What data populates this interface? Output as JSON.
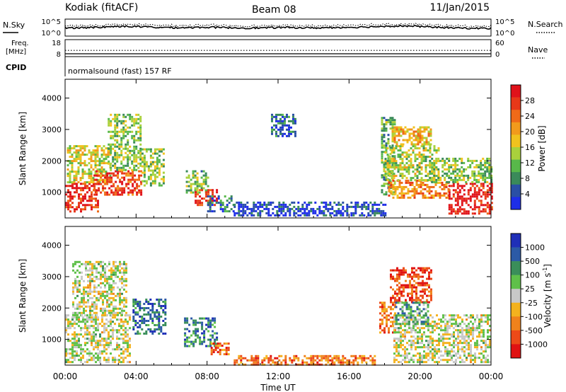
{
  "header": {
    "station": "Kodiak (fitACF)",
    "beam": "Beam 08",
    "date": "11/Jan/2015"
  },
  "noise_panel": {
    "left_label": "N.Sky",
    "right_label": "N.Search",
    "ticks_left": [
      "10^5",
      "10^0"
    ],
    "ticks_right": [
      "10^5",
      "10^0"
    ]
  },
  "freq_panel": {
    "label_line1": "Freq.",
    "label_line2": "[MHz]",
    "ticks_left": [
      "18",
      "8"
    ],
    "right_label": "Nave",
    "ticks_right": [
      "60",
      "0"
    ]
  },
  "cpid": {
    "label": "CPID",
    "mode": "normalsound (fast) 157 RF"
  },
  "time_axis": {
    "label": "Time UT",
    "ticks": [
      "00:00",
      "04:00",
      "08:00",
      "12:00",
      "16:00",
      "20:00",
      "00:00"
    ]
  },
  "chart_data": [
    {
      "type": "heatmap",
      "title": "Power",
      "xlabel": "Time UT",
      "ylabel": "Slant Range [km]",
      "xlim": [
        0,
        24
      ],
      "ylim": [
        180,
        4600
      ],
      "yticks": [
        "1000",
        "2000",
        "3000",
        "4000"
      ],
      "colorbar_label": "Power [dB]",
      "colorbar_ticks": [
        "4",
        "8",
        "12",
        "16",
        "20",
        "24",
        "28"
      ],
      "colorbar_colors": [
        "#1e2ee8",
        "#2a4fa5",
        "#3a8a5a",
        "#58b84a",
        "#a9d13c",
        "#f1c21e",
        "#f29a1c",
        "#ef6a18",
        "#e83818",
        "#e0121a"
      ],
      "regions": [
        {
          "t0": 0.0,
          "t1": 1.9,
          "r0": 380,
          "r1": 1300,
          "level": 0.9
        },
        {
          "t0": 0.1,
          "t1": 2.5,
          "r0": 1300,
          "r1": 2500,
          "level": 0.5
        },
        {
          "t0": 1.6,
          "t1": 4.3,
          "r0": 900,
          "r1": 1700,
          "level": 0.85
        },
        {
          "t0": 2.4,
          "t1": 4.3,
          "r0": 1700,
          "r1": 3500,
          "level": 0.4
        },
        {
          "t0": 4.3,
          "t1": 5.6,
          "r0": 1200,
          "r1": 2400,
          "level": 0.4
        },
        {
          "t0": 6.8,
          "t1": 8.0,
          "r0": 1000,
          "r1": 1700,
          "level": 0.35
        },
        {
          "t0": 7.3,
          "t1": 8.6,
          "r0": 600,
          "r1": 1100,
          "level": 0.85
        },
        {
          "t0": 8.0,
          "t1": 9.5,
          "r0": 400,
          "r1": 900,
          "level": 0.2
        },
        {
          "t0": 9.5,
          "t1": 18.0,
          "r0": 250,
          "r1": 700,
          "level": 0.1
        },
        {
          "t0": 11.6,
          "t1": 13.0,
          "r0": 2800,
          "r1": 3500,
          "level": 0.15
        },
        {
          "t0": 17.8,
          "t1": 18.6,
          "r0": 900,
          "r1": 3400,
          "level": 0.35
        },
        {
          "t0": 18.2,
          "t1": 21.6,
          "r0": 800,
          "r1": 1400,
          "level": 0.7
        },
        {
          "t0": 18.0,
          "t1": 21.0,
          "r0": 1400,
          "r1": 2500,
          "level": 0.45
        },
        {
          "t0": 18.4,
          "t1": 20.6,
          "r0": 2500,
          "r1": 3100,
          "level": 0.6
        },
        {
          "t0": 21.6,
          "t1": 24.0,
          "r0": 300,
          "r1": 1300,
          "level": 0.95
        },
        {
          "t0": 20.5,
          "t1": 24.0,
          "r0": 1300,
          "r1": 2100,
          "level": 0.4
        }
      ]
    },
    {
      "type": "heatmap",
      "title": "Velocity",
      "xlabel": "Time UT",
      "ylabel": "Slant Range [km]",
      "xlim": [
        0,
        24
      ],
      "ylim": [
        180,
        4600
      ],
      "yticks": [
        "1000",
        "2000",
        "3000",
        "4000"
      ],
      "colorbar_label": "Velocity [m s^-1]",
      "colorbar_ticks": [
        "1000",
        "500",
        "100",
        "25",
        "-25",
        "-100",
        "-500",
        "-1000"
      ],
      "colorbar_colors": [
        "#1f2fb8",
        "#2c5aa6",
        "#3a8e5a",
        "#5fc04a",
        "#c8c8c8",
        "#f4b21e",
        "#f0821c",
        "#ec4a18",
        "#e01212"
      ],
      "regions": [
        {
          "t0": 0.0,
          "t1": 3.6,
          "r0": 300,
          "r1": 1800,
          "level": 0.5
        },
        {
          "t0": 0.4,
          "t1": 3.5,
          "r0": 1800,
          "r1": 3500,
          "level": 0.5
        },
        {
          "t0": 3.8,
          "t1": 5.7,
          "r0": 1200,
          "r1": 2300,
          "level": 0.2
        },
        {
          "t0": 6.7,
          "t1": 8.6,
          "r0": 800,
          "r1": 1700,
          "level": 0.25
        },
        {
          "t0": 8.2,
          "t1": 9.2,
          "r0": 500,
          "r1": 900,
          "level": 0.8
        },
        {
          "t0": 9.5,
          "t1": 17.5,
          "r0": 200,
          "r1": 500,
          "level": 0.75
        },
        {
          "t0": 17.7,
          "t1": 18.6,
          "r0": 1200,
          "r1": 2200,
          "level": 0.75
        },
        {
          "t0": 18.3,
          "t1": 20.6,
          "r0": 2200,
          "r1": 3300,
          "level": 0.85
        },
        {
          "t0": 18.5,
          "t1": 24.0,
          "r0": 300,
          "r1": 1800,
          "level": 0.5
        },
        {
          "t0": 18.6,
          "t1": 20.4,
          "r0": 1500,
          "r1": 2200,
          "level": 0.3
        }
      ]
    },
    {
      "type": "line",
      "title": "N.Sky",
      "xlim": [
        0,
        24
      ],
      "ylim": [
        0,
        5
      ],
      "x": [
        0,
        1,
        2,
        3,
        4,
        5,
        6,
        7,
        8,
        9,
        10,
        11,
        12,
        13,
        14,
        15,
        16,
        17,
        18,
        19,
        20,
        21,
        22,
        23,
        24
      ],
      "values": [
        2.4,
        2.5,
        2.6,
        2.9,
        2.8,
        2.6,
        2.5,
        2.5,
        2.6,
        2.5,
        2.4,
        2.4,
        2.5,
        2.5,
        2.4,
        2.5,
        2.6,
        2.7,
        2.9,
        3.0,
        2.8,
        2.6,
        2.4,
        2.3,
        2.3
      ]
    },
    {
      "type": "line",
      "title": "Nave",
      "xlim": [
        0,
        24
      ],
      "ylim": [
        0,
        60
      ],
      "x": [
        0,
        2,
        4,
        6,
        8,
        10,
        12,
        14,
        16,
        18,
        20,
        22,
        24
      ],
      "values": [
        22,
        22,
        22,
        22,
        22,
        22,
        22,
        22,
        22,
        22,
        22,
        22,
        22
      ]
    }
  ]
}
